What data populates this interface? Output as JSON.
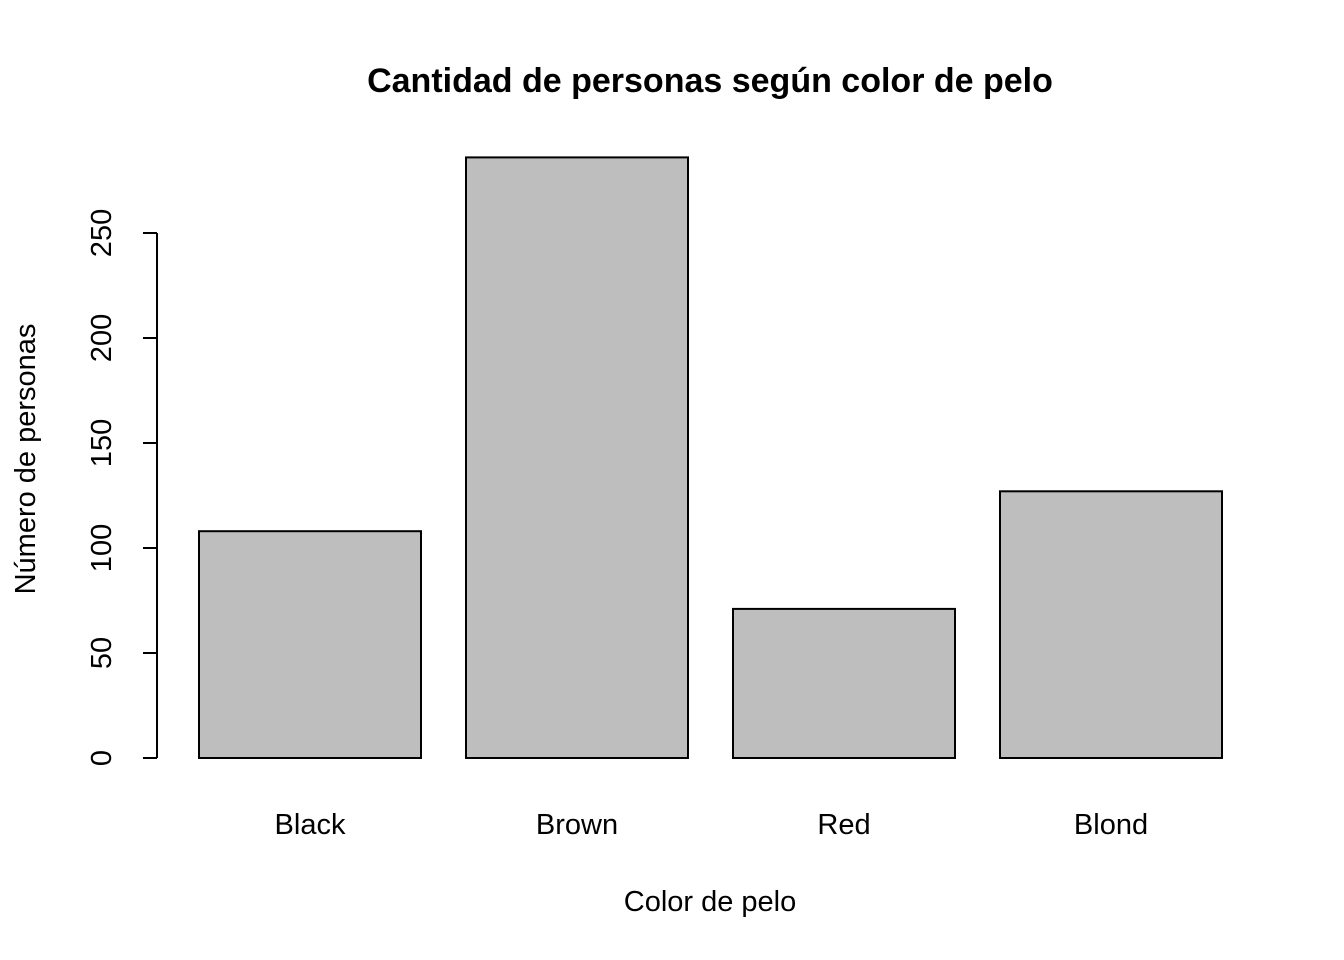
{
  "chart_data": {
    "type": "bar",
    "title": "Cantidad de personas según color de pelo",
    "xlabel": "Color de pelo",
    "ylabel": "Número de personas",
    "categories": [
      "Black",
      "Brown",
      "Red",
      "Blond"
    ],
    "values": [
      108,
      286,
      71,
      127
    ],
    "ylim": [
      0,
      286
    ],
    "yticks": [
      0,
      50,
      100,
      150,
      200,
      250
    ],
    "bar_color": "#bebebe",
    "grid": false,
    "legend": "none"
  }
}
